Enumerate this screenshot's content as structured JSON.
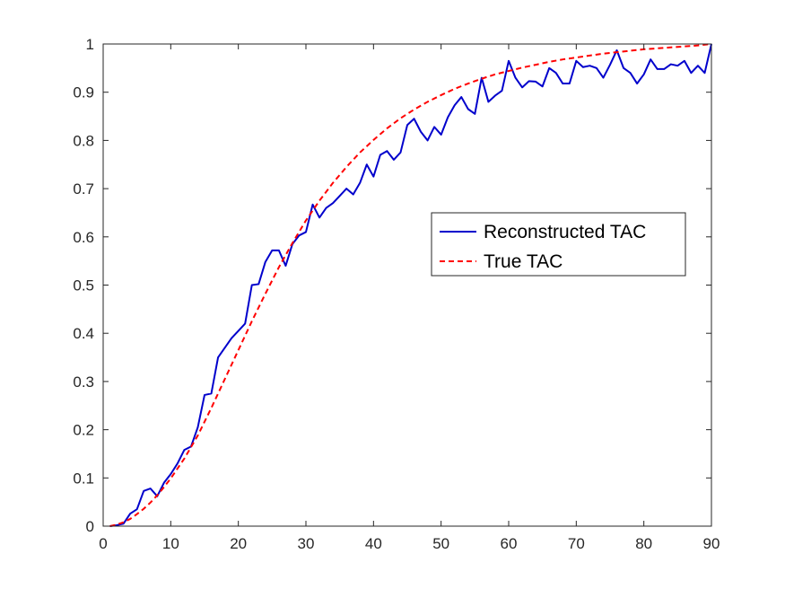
{
  "chart_data": {
    "type": "line",
    "title": "",
    "xlabel": "",
    "ylabel": "",
    "xlim": [
      0,
      90
    ],
    "ylim": [
      0,
      1
    ],
    "xticks": [
      "0",
      "10",
      "20",
      "30",
      "40",
      "50",
      "60",
      "70",
      "80",
      "90"
    ],
    "yticks": [
      "0",
      "0.1",
      "0.2",
      "0.3",
      "0.4",
      "0.5",
      "0.6",
      "0.7",
      "0.8",
      "0.9",
      "1"
    ],
    "grid": false,
    "legend_position": "right",
    "series": [
      {
        "name": "Reconstructed TAC",
        "color": "#0000cc",
        "line_style": "solid",
        "x": [
          1,
          2,
          3,
          4,
          5,
          6,
          7,
          8,
          9,
          10,
          11,
          12,
          13,
          14,
          15,
          16,
          17,
          18,
          19,
          20,
          21,
          22,
          23,
          24,
          25,
          26,
          27,
          28,
          29,
          30,
          31,
          32,
          33,
          34,
          35,
          36,
          37,
          38,
          39,
          40,
          41,
          42,
          43,
          44,
          45,
          46,
          47,
          48,
          49,
          50,
          51,
          52,
          53,
          54,
          55,
          56,
          57,
          58,
          59,
          60,
          61,
          62,
          63,
          64,
          65,
          66,
          67,
          68,
          69,
          70,
          71,
          72,
          73,
          74,
          75,
          76,
          77,
          78,
          79,
          80,
          81,
          82,
          83,
          84,
          85,
          86,
          87,
          88,
          89,
          90
        ],
        "y": [
          0.0,
          0.002,
          0.005,
          0.026,
          0.035,
          0.073,
          0.078,
          0.062,
          0.09,
          0.108,
          0.13,
          0.158,
          0.165,
          0.205,
          0.272,
          0.275,
          0.35,
          0.37,
          0.39,
          0.405,
          0.42,
          0.5,
          0.502,
          0.548,
          0.572,
          0.572,
          0.54,
          0.585,
          0.603,
          0.61,
          0.667,
          0.64,
          0.66,
          0.67,
          0.685,
          0.7,
          0.688,
          0.712,
          0.75,
          0.725,
          0.77,
          0.778,
          0.76,
          0.775,
          0.832,
          0.845,
          0.818,
          0.8,
          0.828,
          0.812,
          0.848,
          0.873,
          0.89,
          0.865,
          0.855,
          0.93,
          0.88,
          0.893,
          0.903,
          0.965,
          0.93,
          0.91,
          0.923,
          0.922,
          0.912,
          0.95,
          0.94,
          0.918,
          0.918,
          0.965,
          0.952,
          0.955,
          0.95,
          0.93,
          0.957,
          0.987,
          0.95,
          0.94,
          0.918,
          0.937,
          0.968,
          0.948,
          0.948,
          0.958,
          0.955,
          0.965,
          0.94,
          0.955,
          0.94,
          1.0
        ]
      },
      {
        "name": "True TAC",
        "color": "#ff0000",
        "line_style": "dashed",
        "x": [
          1,
          2,
          3,
          4,
          5,
          6,
          7,
          8,
          9,
          10,
          12,
          14,
          16,
          18,
          20,
          22,
          24,
          26,
          28,
          30,
          32,
          34,
          36,
          38,
          40,
          42,
          44,
          46,
          48,
          50,
          52,
          54,
          56,
          58,
          60,
          62,
          64,
          66,
          68,
          70,
          72,
          74,
          76,
          78,
          80,
          82,
          84,
          86,
          88,
          90
        ],
        "y": [
          0.0,
          0.003,
          0.008,
          0.015,
          0.025,
          0.036,
          0.049,
          0.064,
          0.081,
          0.099,
          0.14,
          0.188,
          0.245,
          0.305,
          0.365,
          0.425,
          0.482,
          0.537,
          0.587,
          0.634,
          0.675,
          0.712,
          0.745,
          0.775,
          0.801,
          0.825,
          0.846,
          0.864,
          0.88,
          0.894,
          0.907,
          0.918,
          0.928,
          0.937,
          0.944,
          0.951,
          0.957,
          0.963,
          0.968,
          0.972,
          0.976,
          0.98,
          0.983,
          0.986,
          0.989,
          0.991,
          0.993,
          0.995,
          0.997,
          1.0
        ]
      }
    ]
  }
}
